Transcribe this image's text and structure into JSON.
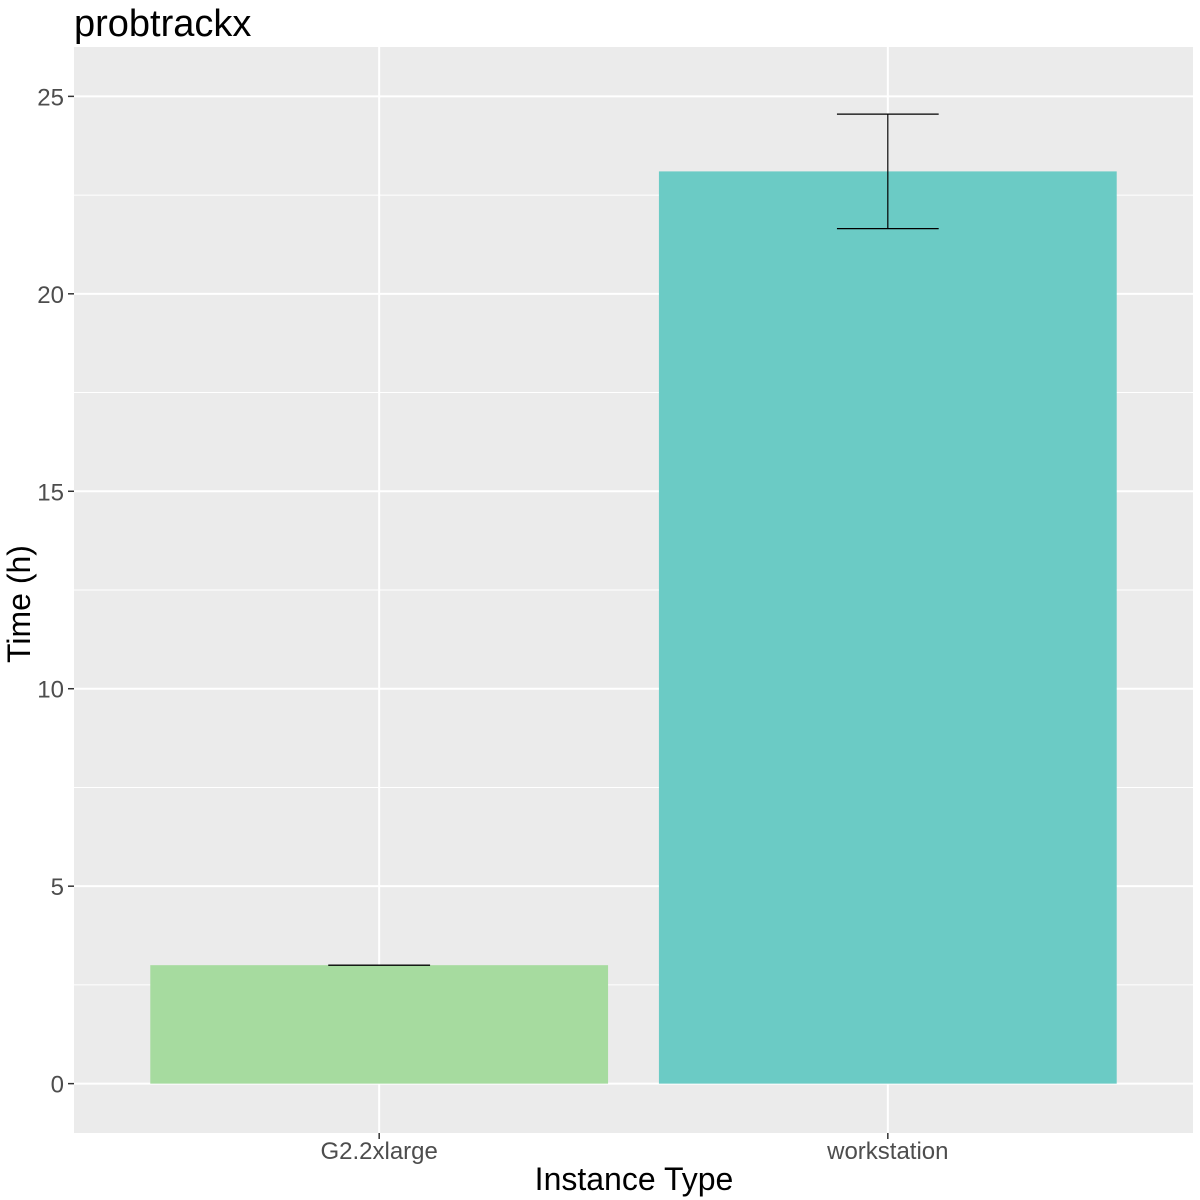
{
  "chart_data": {
    "type": "bar",
    "title": "probtrackx",
    "xlabel": "Instance Type",
    "ylabel": "Time (h)",
    "categories": [
      "G2.2xlarge",
      "workstation"
    ],
    "values": [
      3.0,
      23.1
    ],
    "error_bars": [
      {
        "low": 3.0,
        "high": 3.0
      },
      {
        "low": 21.65,
        "high": 24.55
      }
    ],
    "bar_colors": [
      "#a6db9f",
      "#6bcbc5"
    ],
    "ylim": [
      -1.25,
      26.25
    ],
    "yticks": [
      0,
      5,
      10,
      15,
      20,
      25
    ],
    "grid": true,
    "legend": "none",
    "colors": {
      "panel_background": "#ebebeb",
      "grid_line": "#ffffff",
      "tick_label": "#4d4d4d",
      "error_bar": "#000000"
    }
  }
}
